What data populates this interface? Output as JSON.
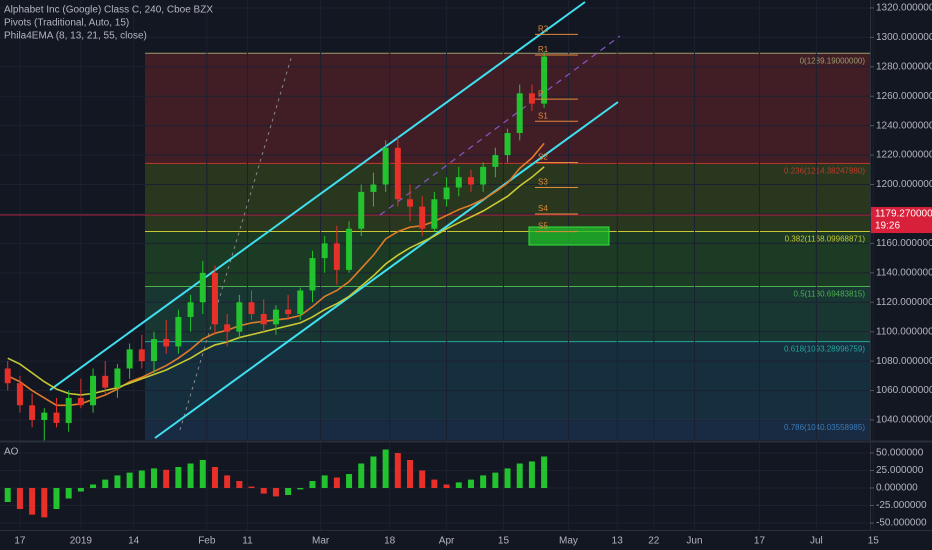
{
  "chart_data": [
    {
      "type": "candlestick",
      "title": "Alphabet Inc (Google) Class C, 240, Cboe BZX",
      "indicators": [
        "Pivots (Traditional, Auto, 15)",
        "Phila4EMA (8, 13, 21, 55, close)"
      ],
      "x": [
        -3,
        0,
        3,
        6,
        9,
        12,
        15,
        18,
        21,
        24,
        27,
        30,
        33,
        36,
        39,
        42,
        45,
        48,
        51,
        54,
        57,
        60,
        63,
        66,
        69,
        72,
        75,
        78,
        81,
        84,
        87,
        90,
        93,
        96,
        99,
        102,
        105,
        108,
        111,
        114,
        117,
        120,
        123,
        126,
        129
      ],
      "open": [
        1075,
        1065,
        1050,
        1040,
        1045,
        1038,
        1055,
        1050,
        1070,
        1062,
        1075,
        1088,
        1080,
        1095,
        1090,
        1110,
        1120,
        1140,
        1105,
        1100,
        1120,
        1112,
        1105,
        1115,
        1112,
        1128,
        1150,
        1160,
        1142,
        1170,
        1195,
        1200,
        1225,
        1190,
        1185,
        1170,
        1190,
        1198,
        1205,
        1200,
        1212,
        1220,
        1235,
        1262,
        1255
      ],
      "high": [
        1080,
        1070,
        1058,
        1048,
        1055,
        1060,
        1068,
        1075,
        1080,
        1078,
        1092,
        1098,
        1100,
        1108,
        1115,
        1125,
        1148,
        1145,
        1112,
        1125,
        1128,
        1122,
        1118,
        1125,
        1130,
        1155,
        1165,
        1172,
        1175,
        1200,
        1208,
        1230,
        1232,
        1200,
        1192,
        1195,
        1205,
        1212,
        1210,
        1215,
        1225,
        1238,
        1268,
        1268,
        1290
      ],
      "low": [
        1060,
        1045,
        1035,
        1025,
        1035,
        1032,
        1048,
        1045,
        1058,
        1055,
        1068,
        1075,
        1072,
        1085,
        1085,
        1100,
        1112,
        1098,
        1090,
        1095,
        1108,
        1100,
        1098,
        1108,
        1108,
        1120,
        1140,
        1132,
        1140,
        1165,
        1185,
        1195,
        1185,
        1175,
        1165,
        1168,
        1185,
        1192,
        1195,
        1195,
        1205,
        1215,
        1230,
        1250,
        1252
      ],
      "close": [
        1065,
        1050,
        1040,
        1045,
        1038,
        1055,
        1050,
        1070,
        1062,
        1075,
        1088,
        1080,
        1095,
        1090,
        1110,
        1120,
        1140,
        1105,
        1100,
        1120,
        1112,
        1105,
        1115,
        1112,
        1128,
        1150,
        1160,
        1142,
        1170,
        1195,
        1200,
        1225,
        1190,
        1185,
        1170,
        1190,
        1198,
        1205,
        1200,
        1212,
        1220,
        1235,
        1262,
        1255,
        1287
      ],
      "up_color": "#22c32e",
      "down_color": "#e8302a",
      "series": [
        {
          "color": "#e07b2a",
          "values": [
            1070,
            1066,
            1060,
            1055,
            1050,
            1050,
            1051,
            1054,
            1057,
            1061,
            1066,
            1069,
            1073,
            1077,
            1082,
            1088,
            1095,
            1099,
            1101,
            1104,
            1106,
            1107,
            1108,
            1109,
            1111,
            1117,
            1124,
            1128,
            1134,
            1143,
            1152,
            1163,
            1168,
            1171,
            1172,
            1175,
            1179,
            1183,
            1186,
            1190,
            1195,
            1201,
            1211,
            1218,
            1228
          ]
        },
        {
          "color": "#c8c832",
          "values": [
            1082,
            1078,
            1072,
            1066,
            1061,
            1058,
            1057,
            1058,
            1060,
            1062,
            1065,
            1068,
            1071,
            1074,
            1078,
            1082,
            1087,
            1091,
            1093,
            1096,
            1098,
            1100,
            1102,
            1104,
            1106,
            1110,
            1115,
            1119,
            1124,
            1131,
            1138,
            1146,
            1152,
            1157,
            1161,
            1165,
            1170,
            1174,
            1178,
            1182,
            1187,
            1192,
            1199,
            1205,
            1212
          ]
        }
      ],
      "fib": [
        {
          "value": 1289.19,
          "label": "0(1289.19000000)",
          "color": "#9c9c6c",
          "fill": "#4a1e27"
        },
        {
          "value": 1214.3824788,
          "label": "0.236(1214.38247880)",
          "color": "#c0392b",
          "fill": "#2e3d1e"
        },
        {
          "value": 1168.09968871,
          "label": "0.382(1168.09968871)",
          "color": "#c8c832",
          "fill": "#1d4226"
        },
        {
          "value": 1130.69483815,
          "label": "0.5(1130.69483815)",
          "color": "#4caf50",
          "fill": "#1a3d36"
        },
        {
          "value": 1093.28996759,
          "label": "0.618(1093.28996759)",
          "color": "#26a69a",
          "fill": "#183444"
        },
        {
          "value": 1040.03558985,
          "label": "0.786(1040.03558985)",
          "color": "#3d7ab8",
          "fill": "#1a2f48"
        }
      ],
      "pivots": [
        {
          "label": "R2",
          "value": 1302
        },
        {
          "label": "R1",
          "value": 1288
        },
        {
          "label": "P",
          "value": 1258
        },
        {
          "label": "S1",
          "value": 1243
        },
        {
          "label": "S2",
          "value": 1215
        },
        {
          "label": "S3",
          "value": 1198
        },
        {
          "label": "S4",
          "value": 1180
        },
        {
          "label": "S5",
          "value": 1168
        }
      ],
      "pivot_color": "#e08a3c",
      "last_price": {
        "value": 1179.27,
        "label": "1179.27000000"
      },
      "countdown": "19:26",
      "xlim": [
        -4.9,
        209.2
      ],
      "xticks": [
        {
          "value": 0,
          "label": "17"
        },
        {
          "value": 15,
          "label": "2019"
        },
        {
          "value": 28,
          "label": "14"
        },
        {
          "value": 46,
          "label": "Feb"
        },
        {
          "value": 56,
          "label": "11"
        },
        {
          "value": 74,
          "label": "Mar"
        },
        {
          "value": 91,
          "label": "18"
        },
        {
          "value": 105,
          "label": "Apr"
        },
        {
          "value": 119,
          "label": "15"
        },
        {
          "value": 135,
          "label": "May"
        },
        {
          "value": 147,
          "label": "13"
        },
        {
          "value": 156,
          "label": "22"
        },
        {
          "value": 166,
          "label": "Jun"
        },
        {
          "value": 182,
          "label": "17"
        },
        {
          "value": 196,
          "label": "Jul"
        },
        {
          "value": 210,
          "label": "15"
        }
      ],
      "ylim": [
        1026.4,
        1325.4
      ],
      "yticks": [
        {
          "value": 1040,
          "label": "1040.00000000"
        },
        {
          "value": 1060,
          "label": "1060.00000000"
        },
        {
          "value": 1080,
          "label": "1080.00000000"
        },
        {
          "value": 1100,
          "label": "1100.00000000"
        },
        {
          "value": 1120,
          "label": "1120.00000000"
        },
        {
          "value": 1140,
          "label": "1140.00000000"
        },
        {
          "value": 1160,
          "label": "1160.00000000"
        },
        {
          "value": 1180,
          "label": "1180.00000000"
        },
        {
          "value": 1200,
          "label": "1200.00000000"
        },
        {
          "value": 1220,
          "label": "1220.00000000"
        },
        {
          "value": 1240,
          "label": "1240.00000000"
        },
        {
          "value": 1260,
          "label": "1260.00000000"
        },
        {
          "value": 1280,
          "label": "1280.00000000"
        },
        {
          "value": 1300,
          "label": "1300.00000000"
        },
        {
          "value": 1320,
          "label": "1320.00000000"
        }
      ]
    },
    {
      "type": "bar",
      "title": "AO",
      "up_color": "#22c32e",
      "down_color": "#e8302a",
      "values": [
        -20,
        -30,
        -38,
        -42,
        -30,
        -15,
        -5,
        5,
        12,
        18,
        22,
        25,
        28,
        26,
        30,
        35,
        40,
        30,
        18,
        10,
        2,
        -8,
        -12,
        -10,
        -2,
        10,
        18,
        15,
        20,
        35,
        45,
        55,
        50,
        40,
        25,
        12,
        5,
        8,
        12,
        18,
        22,
        28,
        35,
        38,
        45
      ],
      "ylim": [
        -60,
        64.3
      ],
      "yticks": [
        {
          "value": 50,
          "label": "50.000000"
        },
        {
          "value": 25,
          "label": "25.000000"
        },
        {
          "value": 0,
          "label": "0.000000"
        },
        {
          "value": -25,
          "label": "-25.000000"
        },
        {
          "value": -50,
          "label": "-50.000000"
        }
      ]
    }
  ]
}
